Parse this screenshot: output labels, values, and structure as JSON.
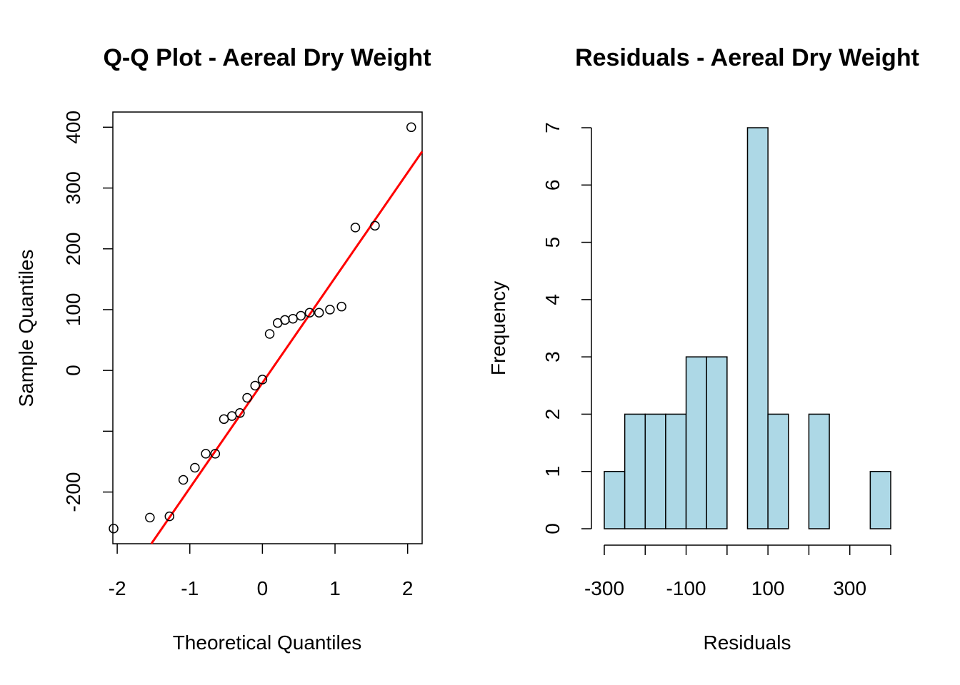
{
  "chart_data": [
    {
      "type": "scatter",
      "title": "Q-Q Plot - Aereal Dry Weight",
      "xlabel": "Theoretical Quantiles",
      "ylabel": "Sample Quantiles",
      "xlim": [
        -2.06,
        2.2
      ],
      "ylim": [
        -285,
        425
      ],
      "xticks": [
        -2,
        -1,
        0,
        1,
        2
      ],
      "xtick_labels": [
        "-2",
        "-1",
        "0",
        "1",
        "2"
      ],
      "yticks": [
        -200,
        -100,
        0,
        100,
        200,
        300,
        400
      ],
      "ytick_labels": [
        "-200",
        "",
        "0",
        "100",
        "200",
        "300",
        "400"
      ],
      "points": {
        "x": [
          -2.05,
          -1.55,
          -1.28,
          -1.09,
          -0.93,
          -0.78,
          -0.65,
          -0.53,
          -0.42,
          -0.31,
          -0.21,
          -0.1,
          0.0,
          0.1,
          0.21,
          0.31,
          0.42,
          0.53,
          0.65,
          0.78,
          0.93,
          1.09,
          1.28,
          1.55,
          2.05
        ],
        "y": [
          -260,
          -242,
          -240,
          -180,
          -160,
          -137,
          -137,
          -80,
          -75,
          -70,
          -45,
          -25,
          -15,
          60,
          78,
          83,
          85,
          90,
          95,
          95,
          100,
          105,
          235,
          238,
          400
        ]
      },
      "reference_line": {
        "x": [
          -1.53,
          2.2
        ],
        "y": [
          -285,
          360
        ],
        "color": "#ff0000"
      },
      "marker": "open-circle",
      "grid": false
    },
    {
      "type": "bar",
      "subtype": "histogram",
      "title": "Residuals - Aereal Dry Weight",
      "xlabel": "Residuals",
      "ylabel": "Frequency",
      "bins": [
        [
          -300,
          -250
        ],
        [
          -250,
          -200
        ],
        [
          -200,
          -150
        ],
        [
          -150,
          -100
        ],
        [
          -100,
          -50
        ],
        [
          -50,
          0
        ],
        [
          0,
          50
        ],
        [
          50,
          100
        ],
        [
          100,
          150
        ],
        [
          150,
          200
        ],
        [
          200,
          250
        ],
        [
          250,
          300
        ],
        [
          300,
          350
        ],
        [
          350,
          400
        ]
      ],
      "values": [
        1,
        2,
        2,
        2,
        3,
        3,
        0,
        7,
        2,
        0,
        2,
        0,
        0,
        1
      ],
      "xlim": [
        -300,
        400
      ],
      "ylim": [
        0,
        7
      ],
      "xticks": [
        -300,
        -200,
        -100,
        0,
        100,
        200,
        300,
        400
      ],
      "xtick_labels": [
        "-300",
        "",
        "-100",
        "",
        "100",
        "",
        "300",
        ""
      ],
      "yticks": [
        0,
        1,
        2,
        3,
        4,
        5,
        6,
        7
      ],
      "ytick_labels": [
        "0",
        "1",
        "2",
        "3",
        "4",
        "5",
        "6",
        "7"
      ],
      "bar_color": "#add8e6",
      "grid": false
    }
  ]
}
